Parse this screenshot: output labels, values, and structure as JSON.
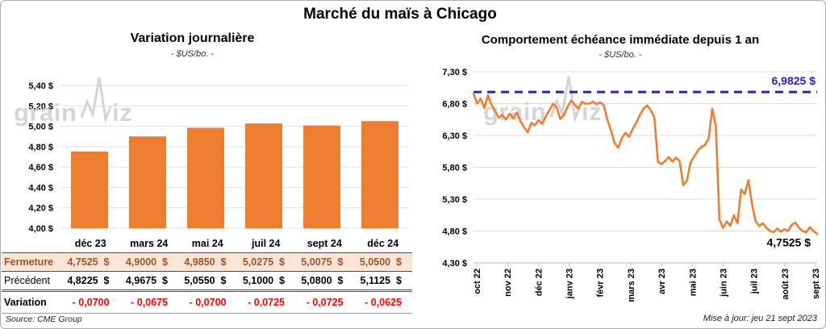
{
  "title": "Marché du maïs à Chicago",
  "watermark": {
    "part1": "grain",
    "part2": "iz"
  },
  "left_panel": {
    "title": "Variation journalière",
    "subtitle": "- $US/bo. -",
    "source": "Source: CME Group"
  },
  "right_panel": {
    "title": "Comportement échéance immédiate depuis 1 an",
    "subtitle": "- $US/bo. -",
    "updated": "Mise à jour: jeu 21 sept 2023"
  },
  "table": {
    "columns": [
      "déc 23",
      "mars 24",
      "mai 24",
      "juil 24",
      "sept 24",
      "déc 24"
    ],
    "rows": [
      {
        "label": "Fermeture",
        "style": "r-fermeture",
        "cells": [
          "4,7525  $",
          "4,9000  $",
          "4,9850  $",
          "5,0275  $",
          "5,0075  $",
          "5,0500  $"
        ]
      },
      {
        "label": "Précédent",
        "style": "r-precedent",
        "cells": [
          "4,8225  $",
          "4,9675  $",
          "5,0550  $",
          "5,1000  $",
          "5,0800  $",
          "5,1125  $"
        ]
      },
      {
        "label": "Variation",
        "style": "r-variation",
        "cells": [
          "- 0,0700",
          "- 0,0675",
          "- 0,0700",
          "- 0,0725",
          "- 0,0725",
          "- 0,0625"
        ]
      }
    ]
  },
  "chart_data": [
    {
      "id": "variation_journaliere",
      "type": "bar",
      "title": "Variation journalière",
      "subtitle": "- $US/bo. -",
      "categories": [
        "déc 23",
        "mars 24",
        "mai 24",
        "juil 24",
        "sept 24",
        "déc 24"
      ],
      "values": [
        4.7525,
        4.9,
        4.985,
        5.0275,
        5.0075,
        5.05
      ],
      "ylim": [
        4.0,
        5.4
      ],
      "ytick_step": 0.2,
      "bar_color": "#ED7D31",
      "grid": true,
      "currency_suffix": " $"
    },
    {
      "id": "comportement_echeance_immediate",
      "type": "line",
      "title": "Comportement échéance immédiate depuis 1 an",
      "subtitle": "- $US/bo. -",
      "x_labels": [
        "oct 22",
        "nov 22",
        "déc 22",
        "janv 23",
        "févr 23",
        "mars 23",
        "avr 23",
        "mai 23",
        "juin 23",
        "juil 23",
        "août 23",
        "sept 23"
      ],
      "ylim": [
        4.3,
        7.3
      ],
      "ytick_step": 0.5,
      "line_color": "#ED7D31",
      "grid": true,
      "reference_line": {
        "value": 6.9825,
        "label": "6,9825 $",
        "color": "#2222CC",
        "style": "dashed"
      },
      "last_value": 4.7525,
      "last_label": "4,7525 $",
      "values": [
        6.96,
        6.8,
        6.88,
        6.73,
        6.93,
        6.78,
        6.68,
        6.58,
        6.62,
        6.55,
        6.64,
        6.57,
        6.66,
        6.52,
        6.43,
        6.35,
        6.5,
        6.46,
        6.54,
        6.48,
        6.6,
        6.7,
        6.8,
        6.74,
        6.56,
        6.62,
        6.75,
        6.85,
        6.78,
        6.72,
        6.83,
        6.8,
        6.8,
        6.83,
        6.79,
        6.82,
        6.78,
        6.55,
        6.38,
        6.18,
        6.11,
        6.26,
        6.34,
        6.28,
        6.4,
        6.5,
        6.62,
        6.72,
        6.77,
        6.7,
        6.58,
        5.88,
        5.85,
        5.9,
        5.96,
        5.89,
        5.95,
        5.9,
        5.52,
        5.59,
        5.88,
        5.97,
        6.06,
        6.12,
        6.15,
        6.25,
        6.72,
        6.45,
        4.98,
        4.85,
        4.95,
        4.88,
        5.05,
        4.92,
        5.45,
        5.38,
        5.6,
        5.22,
        4.95,
        4.88,
        4.92,
        4.85,
        4.8,
        4.78,
        4.84,
        4.79,
        4.83,
        4.8,
        4.9,
        4.93,
        4.85,
        4.8,
        4.78,
        4.86,
        4.8,
        4.7525
      ]
    }
  ]
}
